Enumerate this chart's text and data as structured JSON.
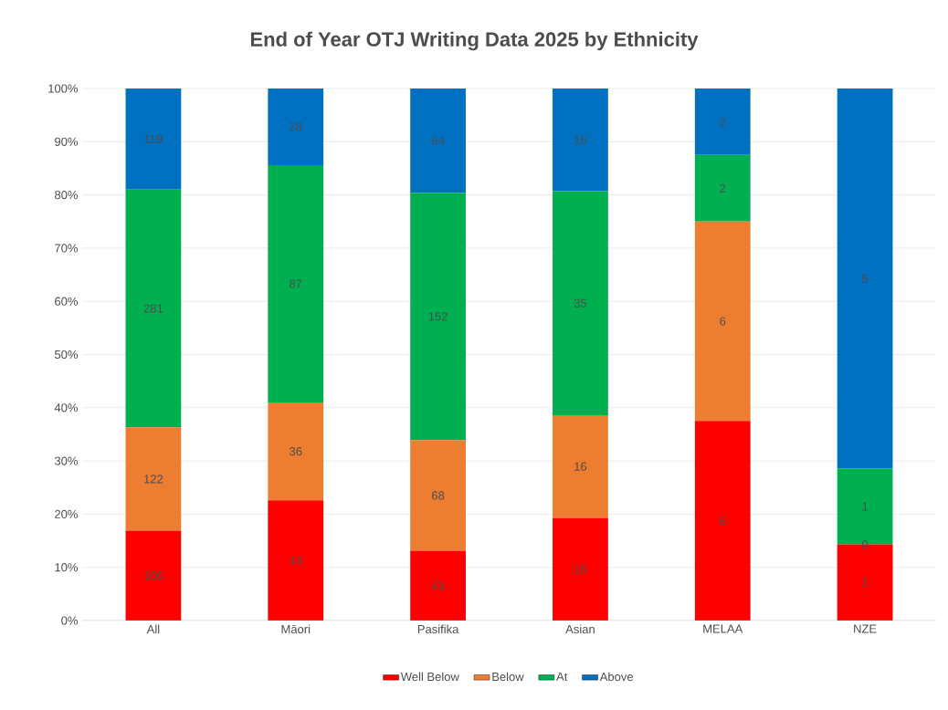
{
  "chart_data": {
    "type": "bar",
    "stacked": true,
    "title": "End of Year OTJ Writing Data 2025 by Ethnicity",
    "categories": [
      "All",
      "Māori",
      "Pasifika",
      "Asian",
      "MELAA",
      "NZE"
    ],
    "series": [
      {
        "name": "Well Below",
        "color": "#ff0000",
        "values": [
          16.9,
          22.6,
          13.1,
          19.3,
          37.5,
          14.3
        ]
      },
      {
        "name": "Below",
        "color": "#ed7d31",
        "values": [
          19.4,
          18.4,
          20.8,
          19.3,
          37.5,
          0
        ]
      },
      {
        "name": "At",
        "color": "#00b050",
        "values": [
          44.7,
          44.6,
          46.5,
          42.1,
          12.5,
          14.3
        ]
      },
      {
        "name": "Above",
        "color": "#0070c0",
        "values": [
          19.0,
          14.4,
          19.6,
          19.3,
          12.5,
          71.4
        ]
      }
    ],
    "annotations": [
      "106",
      "122",
      "281",
      "119",
      "44",
      "36",
      "87",
      "28",
      "43",
      "68",
      "152",
      "64",
      "16",
      "16",
      "35",
      "16",
      "6",
      "6",
      "2",
      "2",
      "1",
      "0",
      "1",
      "5"
    ],
    "ylim": [
      0,
      100
    ],
    "yticks": [
      {
        "value": 0,
        "label": "0%"
      },
      {
        "value": 10,
        "label": "10%"
      },
      {
        "value": 20,
        "label": "20%"
      },
      {
        "value": 30,
        "label": "30%"
      },
      {
        "value": 40,
        "label": "40%"
      },
      {
        "value": 50,
        "label": "50%"
      },
      {
        "value": 60,
        "label": "60%"
      },
      {
        "value": 70,
        "label": "70%"
      },
      {
        "value": 80,
        "label": "80%"
      },
      {
        "value": 90,
        "label": "90%"
      },
      {
        "value": 100,
        "label": "100%"
      }
    ],
    "grid": "y",
    "legend": "bottom"
  }
}
